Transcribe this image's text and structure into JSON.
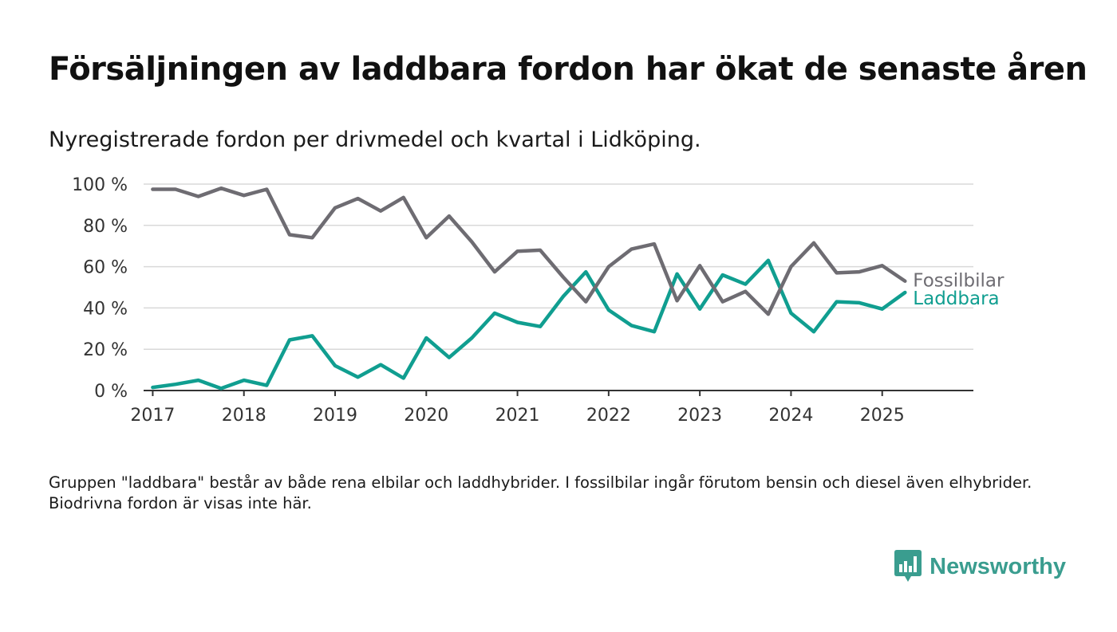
{
  "title": "Försäljningen av laddbara fordon har ökat de senaste åren",
  "subtitle": "Nyregistrerade fordon per drivmedel och kvartal i Lidköping.",
  "footnote": "Gruppen \"laddbara\" består av både rena elbilar och laddhybrider. I fossilbilar ingår förutom bensin och diesel även elhybrider. Biodrivna fordon är visas inte här.",
  "brand": {
    "name": "Newsworthy",
    "color": "#3a9d8f",
    "icon": "newsworthy-logo-icon"
  },
  "chart_data": {
    "type": "line",
    "y_ticks": [
      "0 %",
      "20 %",
      "40 %",
      "60 %",
      "80 %",
      "100 %"
    ],
    "ylim": [
      0,
      100
    ],
    "x_ticks": [
      2017,
      2018,
      2019,
      2020,
      2021,
      2022,
      2023,
      2024,
      2025
    ],
    "x": [
      2017.0,
      2017.25,
      2017.5,
      2017.75,
      2018.0,
      2018.25,
      2018.5,
      2018.75,
      2019.0,
      2019.25,
      2019.5,
      2019.75,
      2020.0,
      2020.25,
      2020.5,
      2020.75,
      2021.0,
      2021.25,
      2021.5,
      2021.75,
      2022.0,
      2022.25,
      2022.5,
      2022.75,
      2023.0,
      2023.25,
      2023.5,
      2023.75,
      2024.0,
      2024.25,
      2024.5,
      2024.75,
      2025.0,
      2025.25
    ],
    "grid": true,
    "series": [
      {
        "name": "Fossilbilar",
        "color": "#6e6c72",
        "values": [
          97.5,
          97.5,
          94,
          98,
          94.5,
          97.5,
          75.5,
          74,
          88.5,
          93,
          87,
          93.5,
          74,
          84.5,
          72,
          57.5,
          67.5,
          68,
          55,
          43,
          60,
          68.5,
          71,
          43.5,
          60.5,
          43,
          48,
          37,
          60,
          71.5,
          57,
          57.5,
          60.5,
          53
        ]
      },
      {
        "name": "Laddbara",
        "color": "#109e90",
        "values": [
          1.5,
          3,
          5,
          1,
          5,
          2.5,
          24.5,
          26.5,
          12,
          6.5,
          12.5,
          6,
          25.5,
          16,
          25.5,
          37.5,
          33,
          31,
          45.5,
          57.5,
          39,
          31.5,
          28.5,
          56.5,
          39.5,
          56,
          51.5,
          63,
          37.5,
          28.5,
          43,
          42.5,
          39.5,
          47.5
        ]
      }
    ]
  }
}
